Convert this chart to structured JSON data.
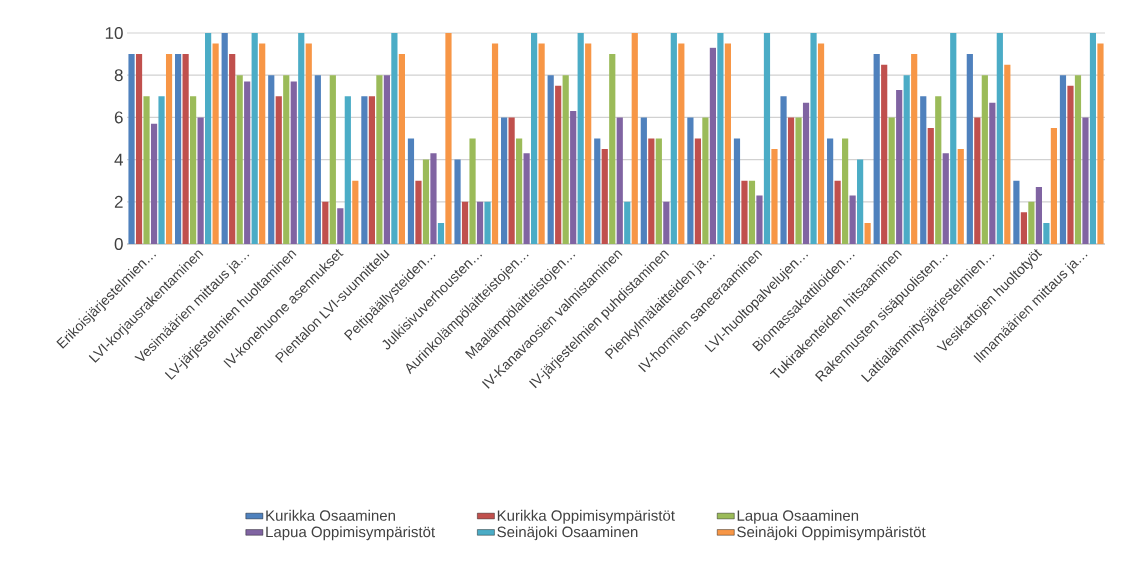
{
  "chart_data": {
    "type": "bar",
    "categories": [
      "Erikoisjärjestelmien…",
      "LVI-korjausrakentaminen",
      "Vesimäärien mittaus ja…",
      "LV-järjestelmien huoltaminen",
      "IV-konehuone asennukset",
      "Pientalon LVI-suunnittelu",
      "Peltipäällysteiden…",
      "Julkisivuverhousten…",
      "Aurinkolämpölaitteistojen…",
      "Maalämpölaitteistojen…",
      "IV-Kanavaosien valmistaminen",
      "IV-järjestelmien puhdistaminen",
      "Pienkylmälaitteiden ja…",
      "IV-hormien saneeraaminen",
      "LVI-huoltopalvelujen…",
      "Biomassakattiloiden…",
      "Tukirakenteiden hitsaaminen",
      "Rakennusten sisäpuolisten…",
      "Lattialämmitysjärjestelmien…",
      "Vesikattojen huoltotyöt",
      "Ilmamäärien mittaus ja…"
    ],
    "series": [
      {
        "name": "Kurikka Osaaminen",
        "color": "#4f81bd",
        "values": [
          9,
          9,
          10,
          8,
          8,
          7,
          5,
          4,
          6,
          8,
          5,
          6,
          6,
          5,
          7,
          5,
          9,
          7,
          9,
          3,
          8
        ]
      },
      {
        "name": "Kurikka Oppimisympäristöt",
        "color": "#c0504d",
        "values": [
          9,
          9,
          9,
          7,
          2,
          7,
          3,
          2,
          6,
          7.5,
          4.5,
          5,
          5,
          3,
          6,
          3,
          8.5,
          5.5,
          6,
          1.5,
          7.5
        ]
      },
      {
        "name": "Lapua Osaaminen",
        "color": "#9bbb59",
        "values": [
          7,
          7,
          8,
          8,
          8,
          8,
          4,
          5,
          5,
          8,
          9,
          5,
          6,
          3,
          6,
          5,
          6,
          7,
          8,
          2,
          8
        ]
      },
      {
        "name": "Lapua Oppimisympäristöt",
        "color": "#8064a2",
        "values": [
          5.7,
          6,
          7.7,
          7.7,
          1.7,
          8,
          4.3,
          2,
          4.3,
          6.3,
          6,
          2,
          9.3,
          2.3,
          6.7,
          2.3,
          7.3,
          4.3,
          6.7,
          2.7,
          6
        ]
      },
      {
        "name": "Seinäjoki Osaaminen",
        "color": "#4bacc6",
        "values": [
          7,
          10,
          10,
          10,
          7,
          10,
          1,
          2,
          10,
          10,
          2,
          10,
          10,
          10,
          10,
          4,
          8,
          10,
          10,
          1,
          10
        ]
      },
      {
        "name": "Seinäjoki Oppimisympäristöt",
        "color": "#f79646",
        "values": [
          9,
          9.5,
          9.5,
          9.5,
          3,
          9,
          10,
          9.5,
          9.5,
          9.5,
          10,
          9.5,
          9.5,
          4.5,
          9.5,
          1,
          9,
          4.5,
          8.5,
          5.5,
          9.5
        ]
      }
    ],
    "ylim": [
      0,
      10
    ],
    "yticks": [
      0,
      2,
      4,
      6,
      8,
      10
    ],
    "grid": "y",
    "legend": "bottom"
  }
}
